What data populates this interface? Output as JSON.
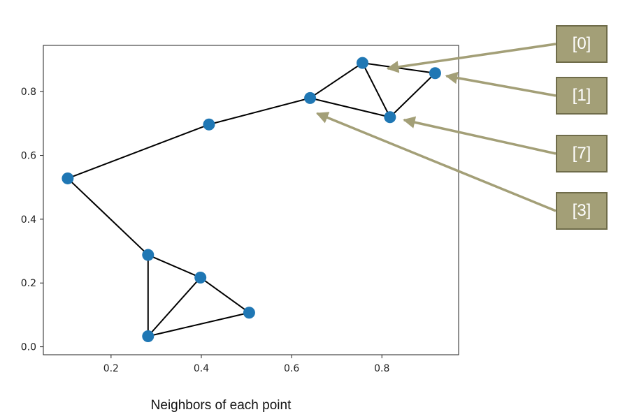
{
  "caption": "Neighbors of each point",
  "colors": {
    "point": "#1f77b4",
    "edge": "#000000",
    "callout_fill": "#a39f77",
    "callout_border": "#6f6c4a",
    "callout_arrow": "#a39f77"
  },
  "callouts": [
    {
      "label": "[0]",
      "target_point": 0
    },
    {
      "label": "[1]",
      "target_point": 1
    },
    {
      "label": "[7]",
      "target_point": 7
    },
    {
      "label": "[3]",
      "target_point": 3
    }
  ],
  "chart_data": {
    "type": "scatter",
    "title": "",
    "xlabel": "",
    "ylabel": "",
    "xlim": [
      0.05,
      0.97
    ],
    "ylim": [
      -0.025,
      0.945
    ],
    "xticks": [
      "0.2",
      "0.4",
      "0.6",
      "0.8"
    ],
    "yticks": [
      "0.0",
      "0.2",
      "0.4",
      "0.6",
      "0.8"
    ],
    "grid": false,
    "points": [
      {
        "index": 0,
        "x": 0.757,
        "y": 0.89
      },
      {
        "index": 1,
        "x": 0.918,
        "y": 0.858
      },
      {
        "index": 2,
        "x": 0.417,
        "y": 0.697
      },
      {
        "index": 3,
        "x": 0.641,
        "y": 0.78
      },
      {
        "index": 4,
        "x": 0.104,
        "y": 0.528
      },
      {
        "index": 5,
        "x": 0.282,
        "y": 0.288
      },
      {
        "index": 6,
        "x": 0.398,
        "y": 0.217
      },
      {
        "index": 7,
        "x": 0.818,
        "y": 0.72
      },
      {
        "index": 8,
        "x": 0.506,
        "y": 0.107
      },
      {
        "index": 9,
        "x": 0.282,
        "y": 0.033
      }
    ],
    "edges": [
      [
        0,
        1
      ],
      [
        0,
        3
      ],
      [
        0,
        7
      ],
      [
        1,
        7
      ],
      [
        3,
        7
      ],
      [
        3,
        2
      ],
      [
        2,
        4
      ],
      [
        4,
        5
      ],
      [
        5,
        6
      ],
      [
        5,
        9
      ],
      [
        6,
        8
      ],
      [
        6,
        9
      ],
      [
        8,
        9
      ]
    ]
  }
}
